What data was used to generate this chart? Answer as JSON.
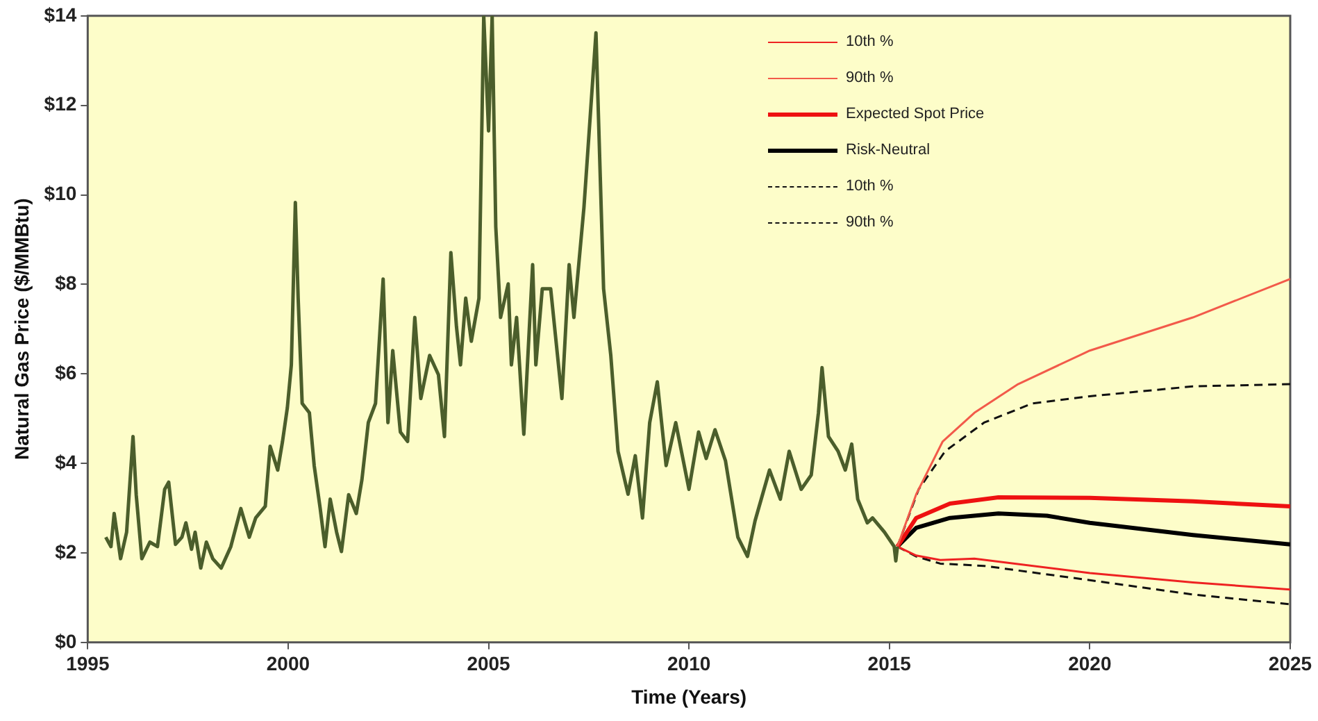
{
  "chart_data": {
    "type": "line",
    "xlabel": "Time (Years)",
    "ylabel": "Natural Gas Price ($/MMBtu)",
    "xlim": [
      1995,
      2025
    ],
    "xticks": [
      1995,
      2000,
      2005,
      2010,
      2015,
      2020,
      2025
    ],
    "ylim": [
      0,
      14
    ],
    "yticks": [
      {
        "value": 0,
        "label": "$0"
      },
      {
        "value": 2,
        "label": "$2"
      },
      {
        "value": 4,
        "label": "$4"
      },
      {
        "value": 6,
        "label": "$6"
      },
      {
        "value": 8,
        "label": "$8"
      },
      {
        "value": 10,
        "label": "$10"
      },
      {
        "value": 12,
        "label": "$12"
      },
      {
        "value": 14,
        "label": "$14"
      }
    ],
    "grid": false,
    "legend": "top right",
    "marker": "none",
    "series": [
      {
        "color": "#4b5e2b",
        "x": [
          1995.45,
          1995.58,
          1995.66,
          1995.82,
          1995.97,
          1996.13,
          1996.21,
          1996.35,
          1996.55,
          1996.74,
          1996.92,
          1997.02,
          1997.19,
          1997.35,
          1997.45,
          1997.59,
          1997.68,
          1997.82,
          1997.96,
          1998.12,
          1998.33,
          1998.57,
          1998.82,
          1999.03,
          1999.19,
          1999.43,
          1999.55,
          1999.74,
          1999.86,
          1999.98,
          2000.08,
          2000.18,
          2000.25,
          2000.35,
          2000.53,
          2000.65,
          2000.8,
          2000.92,
          2001.05,
          2001.21,
          2001.33,
          2001.51,
          2001.7,
          2001.84,
          2002.0,
          2002.18,
          2002.37,
          2002.49,
          2002.61,
          2002.8,
          2002.98,
          2003.16,
          2003.31,
          2003.53,
          2003.75,
          2003.9,
          2004.06,
          2004.2,
          2004.3,
          2004.43,
          2004.57,
          2004.76,
          2004.88,
          2005.0,
          2005.09,
          2005.18,
          2005.3,
          2005.49,
          2005.57,
          2005.7,
          2005.88,
          2006.1,
          2006.18,
          2006.34,
          2006.55,
          2006.83,
          2007.01,
          2007.13,
          2007.38,
          2007.68,
          2007.87,
          2008.05,
          2008.23,
          2008.48,
          2008.66,
          2008.84,
          2009.02,
          2009.21,
          2009.43,
          2009.67,
          2010.0,
          2010.24,
          2010.43,
          2010.65,
          2010.91,
          2011.22,
          2011.46,
          2011.65,
          2012.01,
          2012.28,
          2012.5,
          2012.8,
          2013.05,
          2013.23,
          2013.32,
          2013.48,
          2013.72,
          2013.9,
          2014.06,
          2014.21,
          2014.45,
          2014.58,
          2014.88,
          2015.12,
          2015.16,
          2015.2
        ],
        "values": [
          2.35,
          2.14,
          2.88,
          1.87,
          2.46,
          4.6,
          3.3,
          1.87,
          2.24,
          2.14,
          3.42,
          3.58,
          2.19,
          2.35,
          2.67,
          2.08,
          2.46,
          1.66,
          2.24,
          1.87,
          1.66,
          2.14,
          2.99,
          2.35,
          2.78,
          3.04,
          4.38,
          3.85,
          4.49,
          5.24,
          6.2,
          9.83,
          7.69,
          5.34,
          5.13,
          3.95,
          2.99,
          2.14,
          3.2,
          2.46,
          2.03,
          3.3,
          2.88,
          3.63,
          4.91,
          5.34,
          8.12,
          4.91,
          6.52,
          4.7,
          4.49,
          7.26,
          5.45,
          6.41,
          5.98,
          4.6,
          8.71,
          7.05,
          6.2,
          7.69,
          6.73,
          7.69,
          14,
          11.43,
          14,
          9.29,
          7.26,
          8.01,
          6.2,
          7.26,
          4.65,
          8.44,
          6.2,
          7.9,
          7.9,
          5.45,
          8.44,
          7.26,
          9.72,
          13.62,
          7.9,
          6.41,
          4.27,
          3.31,
          4.17,
          2.78,
          4.91,
          5.82,
          3.95,
          4.91,
          3.42,
          4.7,
          4.11,
          4.75,
          4.06,
          2.35,
          1.92,
          2.72,
          3.85,
          3.2,
          4.27,
          3.42,
          3.74,
          5.13,
          6.14,
          4.6,
          4.27,
          3.85,
          4.43,
          3.2,
          2.67,
          2.78,
          2.46,
          2.14,
          1.82,
          2.14
        ]
      },
      {
        "name": "10th %",
        "color": "#ee2222",
        "line_style": "solid",
        "x": [
          2015.2,
          2015.67,
          2016.27,
          2017.12,
          2020,
          2022.57,
          2025
        ],
        "values": [
          2.14,
          1.94,
          1.84,
          1.87,
          1.55,
          1.34,
          1.18
        ]
      },
      {
        "name": "90th %",
        "color": "#f25a4a",
        "line_style": "solid",
        "x": [
          2015.2,
          2015.67,
          2016.33,
          2017.12,
          2018.21,
          2020,
          2022.57,
          2025
        ],
        "values": [
          2.14,
          3.31,
          4.49,
          5.13,
          5.77,
          6.52,
          7.26,
          8.12
        ]
      },
      {
        "name": "Expected Spot Price",
        "color": "#ee1111",
        "line_style": "solid",
        "x": [
          2015.2,
          2015.67,
          2016.51,
          2017.72,
          2020,
          2022.57,
          2025
        ],
        "values": [
          2.14,
          2.78,
          3.1,
          3.24,
          3.23,
          3.15,
          3.04
        ]
      },
      {
        "name": "Risk-Neutral",
        "color": "#000000",
        "line_style": "solid",
        "x": [
          2015.2,
          2015.67,
          2016.51,
          2017.72,
          2018.93,
          2020,
          2022.57,
          2025
        ],
        "values": [
          2.14,
          2.56,
          2.78,
          2.88,
          2.83,
          2.67,
          2.4,
          2.19
        ]
      },
      {
        "name": "10th %",
        "color": "#111111",
        "line_style": "dashed",
        "x": [
          2015.2,
          2015.67,
          2016.27,
          2017.36,
          2020,
          2022.57,
          2025
        ],
        "values": [
          2.14,
          1.92,
          1.76,
          1.71,
          1.39,
          1.07,
          0.85
        ]
      },
      {
        "name": "90th %",
        "color": "#111111",
        "line_style": "dashed",
        "x": [
          2015.2,
          2015.73,
          2016.39,
          2017.36,
          2018.57,
          2020,
          2022.57,
          2025
        ],
        "values": [
          2.14,
          3.42,
          4.27,
          4.91,
          5.34,
          5.5,
          5.72,
          5.77
        ]
      }
    ]
  }
}
